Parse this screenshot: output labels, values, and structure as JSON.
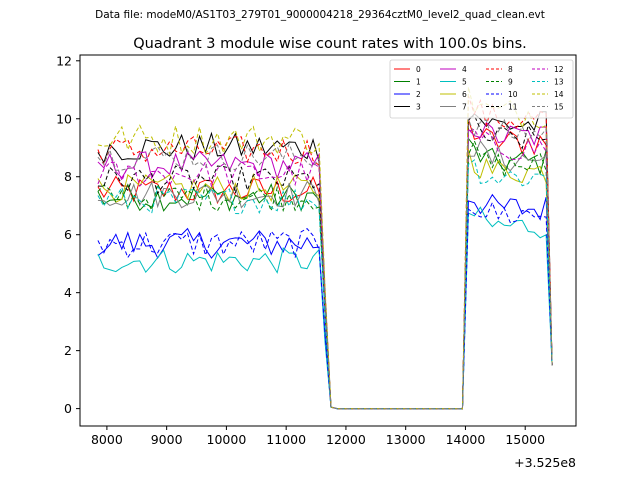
{
  "figure": {
    "suptitle": "Data file: modeM0/AS1T03_279T01_9000004218_29364cztM0_level2_quad_clean.evt"
  },
  "chart_data": {
    "type": "line",
    "title": "Quadrant 3 module wise count rates with 100.0s bins.",
    "xlabel": "",
    "ylabel": "",
    "x_offset_label": "+3.525e8",
    "xlim": [
      7550,
      15850
    ],
    "ylim": [
      -0.6,
      12.2
    ],
    "xticks": [
      8000,
      9000,
      10000,
      11000,
      12000,
      13000,
      14000,
      15000
    ],
    "yticks": [
      0,
      2,
      4,
      6,
      8,
      10,
      12
    ],
    "grid": false,
    "legend_position": "top-right",
    "legend_columns": 4,
    "x_start": 7850,
    "x_step": 100,
    "x_count": 77,
    "gap_ranges": [
      [
        11850,
        13950
      ]
    ],
    "series": [
      {
        "name": "0",
        "color": "#ff0000",
        "dash": "solid",
        "level": 7.5,
        "noise": 0.32,
        "seg2": 9.2,
        "end": 1.5
      },
      {
        "name": "1",
        "color": "#008000",
        "dash": "solid",
        "level": 7.3,
        "noise": 0.3,
        "seg2": 8.5,
        "end": 1.5
      },
      {
        "name": "2",
        "color": "#0000ff",
        "dash": "solid",
        "level": 5.7,
        "noise": 0.32,
        "seg2": 6.9,
        "end": 1.5
      },
      {
        "name": "3",
        "color": "#000000",
        "dash": "solid",
        "level": 9.0,
        "noise": 0.32,
        "seg2": 9.8,
        "end": 1.5
      },
      {
        "name": "4",
        "color": "#bf00bf",
        "dash": "solid",
        "level": 8.4,
        "noise": 0.3,
        "seg2": 9.4,
        "end": 1.5
      },
      {
        "name": "5",
        "color": "#00bfbf",
        "dash": "solid",
        "level": 5.1,
        "noise": 0.28,
        "seg2": 6.3,
        "end": 1.5
      },
      {
        "name": "6",
        "color": "#bfbf00",
        "dash": "solid",
        "level": 7.6,
        "noise": 0.3,
        "seg2": 8.2,
        "end": 1.5
      },
      {
        "name": "7",
        "color": "#808080",
        "dash": "solid",
        "level": 7.4,
        "noise": 0.3,
        "seg2": 8.6,
        "end": 1.5
      },
      {
        "name": "8",
        "color": "#ff0000",
        "dash": "dashed",
        "level": 8.9,
        "noise": 0.32,
        "seg2": 10.0,
        "end": 1.5
      },
      {
        "name": "9",
        "color": "#008000",
        "dash": "dashed",
        "level": 7.3,
        "noise": 0.3,
        "seg2": 8.4,
        "end": 1.5
      },
      {
        "name": "10",
        "color": "#0000ff",
        "dash": "dashed",
        "level": 5.7,
        "noise": 0.32,
        "seg2": 6.7,
        "end": 1.5
      },
      {
        "name": "11",
        "color": "#000000",
        "dash": "dashed",
        "level": 7.9,
        "noise": 0.3,
        "seg2": 9.3,
        "end": 1.5
      },
      {
        "name": "12",
        "color": "#bf00bf",
        "dash": "dashed",
        "level": 8.1,
        "noise": 0.3,
        "seg2": 9.0,
        "end": 1.5
      },
      {
        "name": "13",
        "color": "#00bfbf",
        "dash": "dashed",
        "level": 7.2,
        "noise": 0.3,
        "seg2": 8.0,
        "end": 1.5
      },
      {
        "name": "14",
        "color": "#bfbf00",
        "dash": "dashed",
        "level": 9.3,
        "noise": 0.34,
        "seg2": 10.2,
        "end": 1.5
      },
      {
        "name": "15",
        "color": "#808080",
        "dash": "dashed",
        "level": 8.7,
        "noise": 0.3,
        "seg2": 9.5,
        "end": 1.5
      }
    ]
  }
}
